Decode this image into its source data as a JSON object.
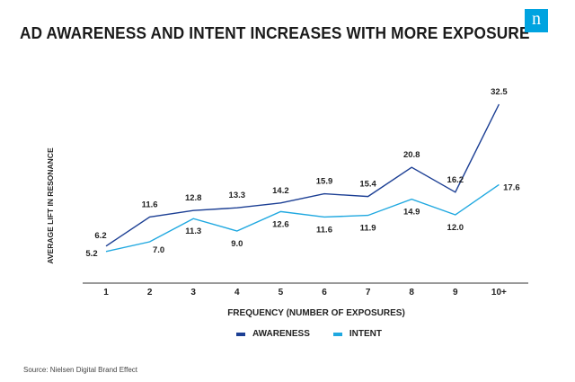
{
  "title": "AD AWARENESS AND INTENT INCREASES WITH MORE EXPOSURE",
  "logo_text": "n",
  "source": "Source: Nielsen Digital Brand Effect",
  "colors": {
    "awareness": "#1c3f94",
    "intent": "#1fa8e0",
    "axis": "#333333",
    "logo": "#00a3e0"
  },
  "chart_data": {
    "type": "line",
    "title": "AD AWARENESS AND INTENT INCREASES WITH MORE EXPOSURE",
    "xlabel": "FREQUENCY (NUMBER OF EXPOSURES)",
    "ylabel": "AVERAGE LIFT IN RESONANCE",
    "categories": [
      "1",
      "2",
      "3",
      "4",
      "5",
      "6",
      "7",
      "8",
      "9",
      "10+"
    ],
    "series": [
      {
        "name": "AWARENESS",
        "values": [
          6.2,
          11.6,
          12.8,
          13.3,
          14.2,
          15.9,
          15.4,
          20.8,
          16.2,
          32.5
        ],
        "labels": [
          "6.2",
          "11.6",
          "12.8",
          "13.3",
          "14.2",
          "15.9",
          "15.4",
          "20.8",
          "16.2",
          "32.5"
        ]
      },
      {
        "name": "INTENT",
        "values": [
          5.2,
          7.0,
          11.3,
          9.0,
          12.6,
          11.6,
          11.9,
          14.9,
          12.0,
          17.6
        ],
        "labels": [
          "5.2",
          "7.0",
          "11.3",
          "9.0",
          "12.6",
          "11.6",
          "11.9",
          "14.9",
          "12.0",
          "17.6"
        ]
      }
    ],
    "ylim": [
      0,
      35
    ],
    "grid": false,
    "legend_position": "bottom"
  }
}
